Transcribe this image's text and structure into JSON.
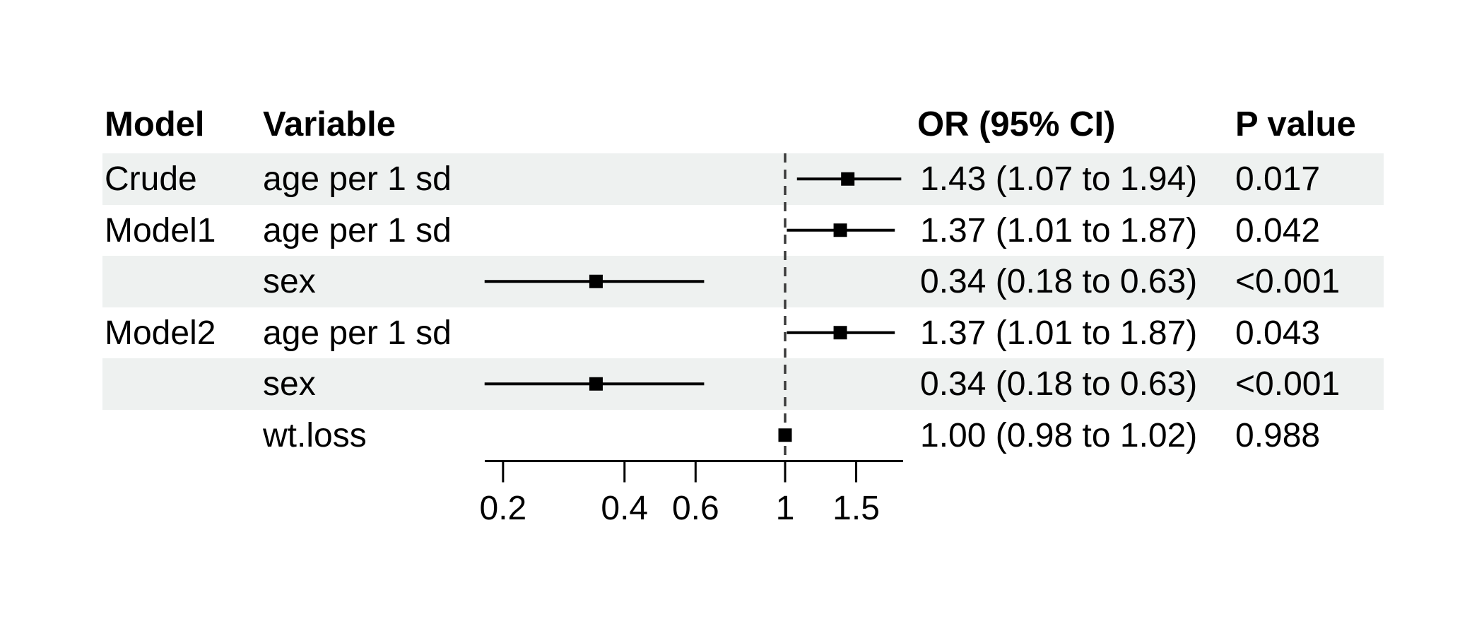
{
  "chart_data": {
    "type": "forest",
    "title": "",
    "x_scale": "log",
    "reference_line": 1,
    "ticks": [
      "0.2",
      "0.4",
      "0.6",
      "1",
      "1.5"
    ],
    "tick_values": [
      0.2,
      0.4,
      0.6,
      1,
      1.5
    ],
    "axis_range": [
      0.175,
      1.95
    ],
    "columns": {
      "model": "Model",
      "variable": "Variable",
      "or_ci": "OR (95% CI)",
      "p": "P value"
    },
    "rows": [
      {
        "model": "Crude",
        "variable": "age per 1 sd",
        "or": 1.43,
        "low": 1.07,
        "high": 1.94,
        "or_ci": "1.43 (1.07 to 1.94)",
        "p": "0.017",
        "shaded": true
      },
      {
        "model": "Model1",
        "variable": "age per 1 sd",
        "or": 1.37,
        "low": 1.01,
        "high": 1.87,
        "or_ci": "1.37 (1.01 to 1.87)",
        "p": "0.042",
        "shaded": false
      },
      {
        "model": "",
        "variable": "sex",
        "or": 0.34,
        "low": 0.18,
        "high": 0.63,
        "or_ci": "0.34 (0.18 to 0.63)",
        "p": "<0.001",
        "shaded": true
      },
      {
        "model": "Model2",
        "variable": "age per 1 sd",
        "or": 1.37,
        "low": 1.01,
        "high": 1.87,
        "or_ci": "1.37 (1.01 to 1.87)",
        "p": "0.043",
        "shaded": false
      },
      {
        "model": "",
        "variable": "sex",
        "or": 0.34,
        "low": 0.18,
        "high": 0.63,
        "or_ci": "0.34 (0.18 to 0.63)",
        "p": "<0.001",
        "shaded": true
      },
      {
        "model": "",
        "variable": "wt.loss",
        "or": 1.0,
        "low": 0.98,
        "high": 1.02,
        "or_ci": "1.00 (0.98 to 1.02)",
        "p": "0.988",
        "shaded": false
      }
    ],
    "colors": {
      "stripe": "#eef1f0",
      "line": "#000000",
      "reference_dash": "#3a3a3a",
      "marker": "#000000",
      "text": "#000000",
      "background": "#ffffff"
    },
    "legend": null,
    "grid": false
  }
}
